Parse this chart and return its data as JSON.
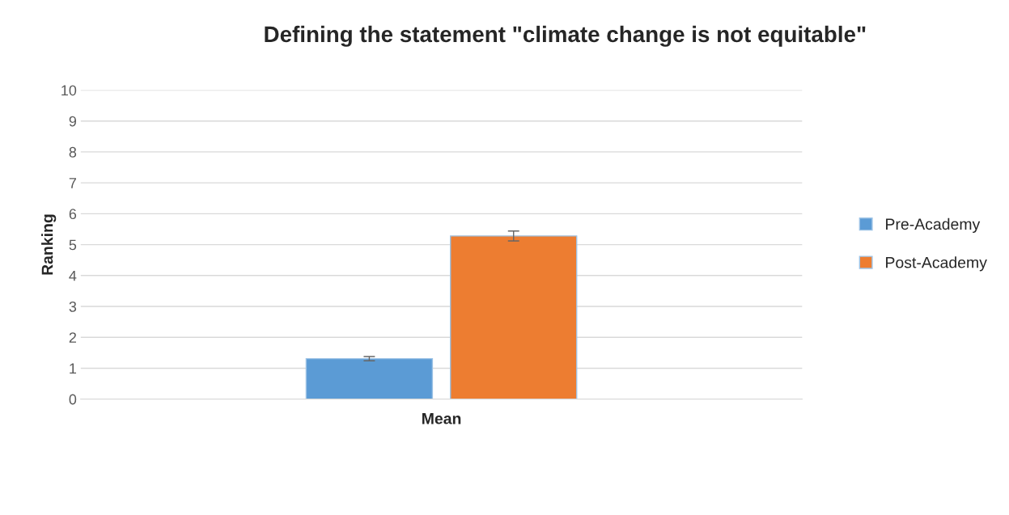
{
  "chart_data": {
    "type": "bar",
    "title": "Defining the statement \"climate change is not equitable\"",
    "ylabel": "Ranking",
    "categories": [
      "Mean"
    ],
    "series": [
      {
        "name": "Pre-Academy",
        "color": "#5b9bd5",
        "values": [
          1.31
        ],
        "errors": [
          0.07
        ]
      },
      {
        "name": "Post-Academy",
        "color": "#ed7d31",
        "values": [
          5.28
        ],
        "errors": [
          0.16
        ]
      }
    ],
    "ylim": [
      0,
      10
    ],
    "yticks": [
      0,
      1,
      2,
      3,
      4,
      5,
      6,
      7,
      8,
      9,
      10
    ],
    "grid": "y",
    "legend": "right"
  }
}
